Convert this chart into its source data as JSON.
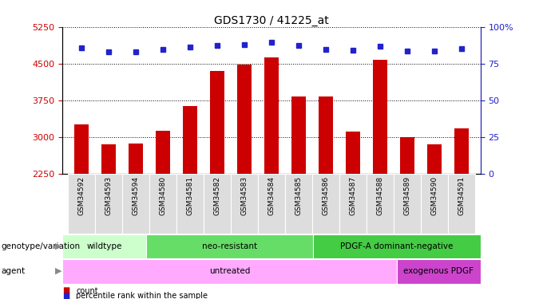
{
  "title": "GDS1730 / 41225_at",
  "samples": [
    "GSM34592",
    "GSM34593",
    "GSM34594",
    "GSM34580",
    "GSM34581",
    "GSM34582",
    "GSM34583",
    "GSM34584",
    "GSM34585",
    "GSM34586",
    "GSM34587",
    "GSM34588",
    "GSM34589",
    "GSM34590",
    "GSM34591"
  ],
  "counts": [
    3250,
    2840,
    2870,
    3120,
    3630,
    4350,
    4480,
    4620,
    3820,
    3820,
    3100,
    4570,
    2990,
    2850,
    3170
  ],
  "percentile_y": [
    4820,
    4740,
    4740,
    4790,
    4840,
    4870,
    4890,
    4930,
    4870,
    4790,
    4780,
    4860,
    4760,
    4760,
    4810
  ],
  "ylim": [
    2250,
    5250
  ],
  "yticks_left": [
    2250,
    3000,
    3750,
    4500,
    5250
  ],
  "yticks_right_labels": [
    "0",
    "25",
    "50",
    "75",
    "100%"
  ],
  "yticks_right_y": [
    2250,
    3000,
    3750,
    4500,
    5250
  ],
  "bar_color": "#cc0000",
  "dot_color": "#2222cc",
  "bar_bottom": 2250,
  "groups": [
    {
      "label": "wildtype",
      "start": 0,
      "end": 3,
      "color": "#ccffcc"
    },
    {
      "label": "neo-resistant",
      "start": 3,
      "end": 9,
      "color": "#66dd66"
    },
    {
      "label": "PDGF-A dominant-negative",
      "start": 9,
      "end": 15,
      "color": "#44cc44"
    }
  ],
  "agents": [
    {
      "label": "untreated",
      "start": 0,
      "end": 12,
      "color": "#ffaaff"
    },
    {
      "label": "exogenous PDGF",
      "start": 12,
      "end": 15,
      "color": "#cc44cc"
    }
  ],
  "genotype_label": "genotype/variation",
  "agent_label": "agent",
  "legend_count_color": "#cc0000",
  "legend_dot_color": "#2222cc",
  "tick_color_left": "#cc0000",
  "tick_color_right": "#2222cc",
  "background_color": "#ffffff"
}
